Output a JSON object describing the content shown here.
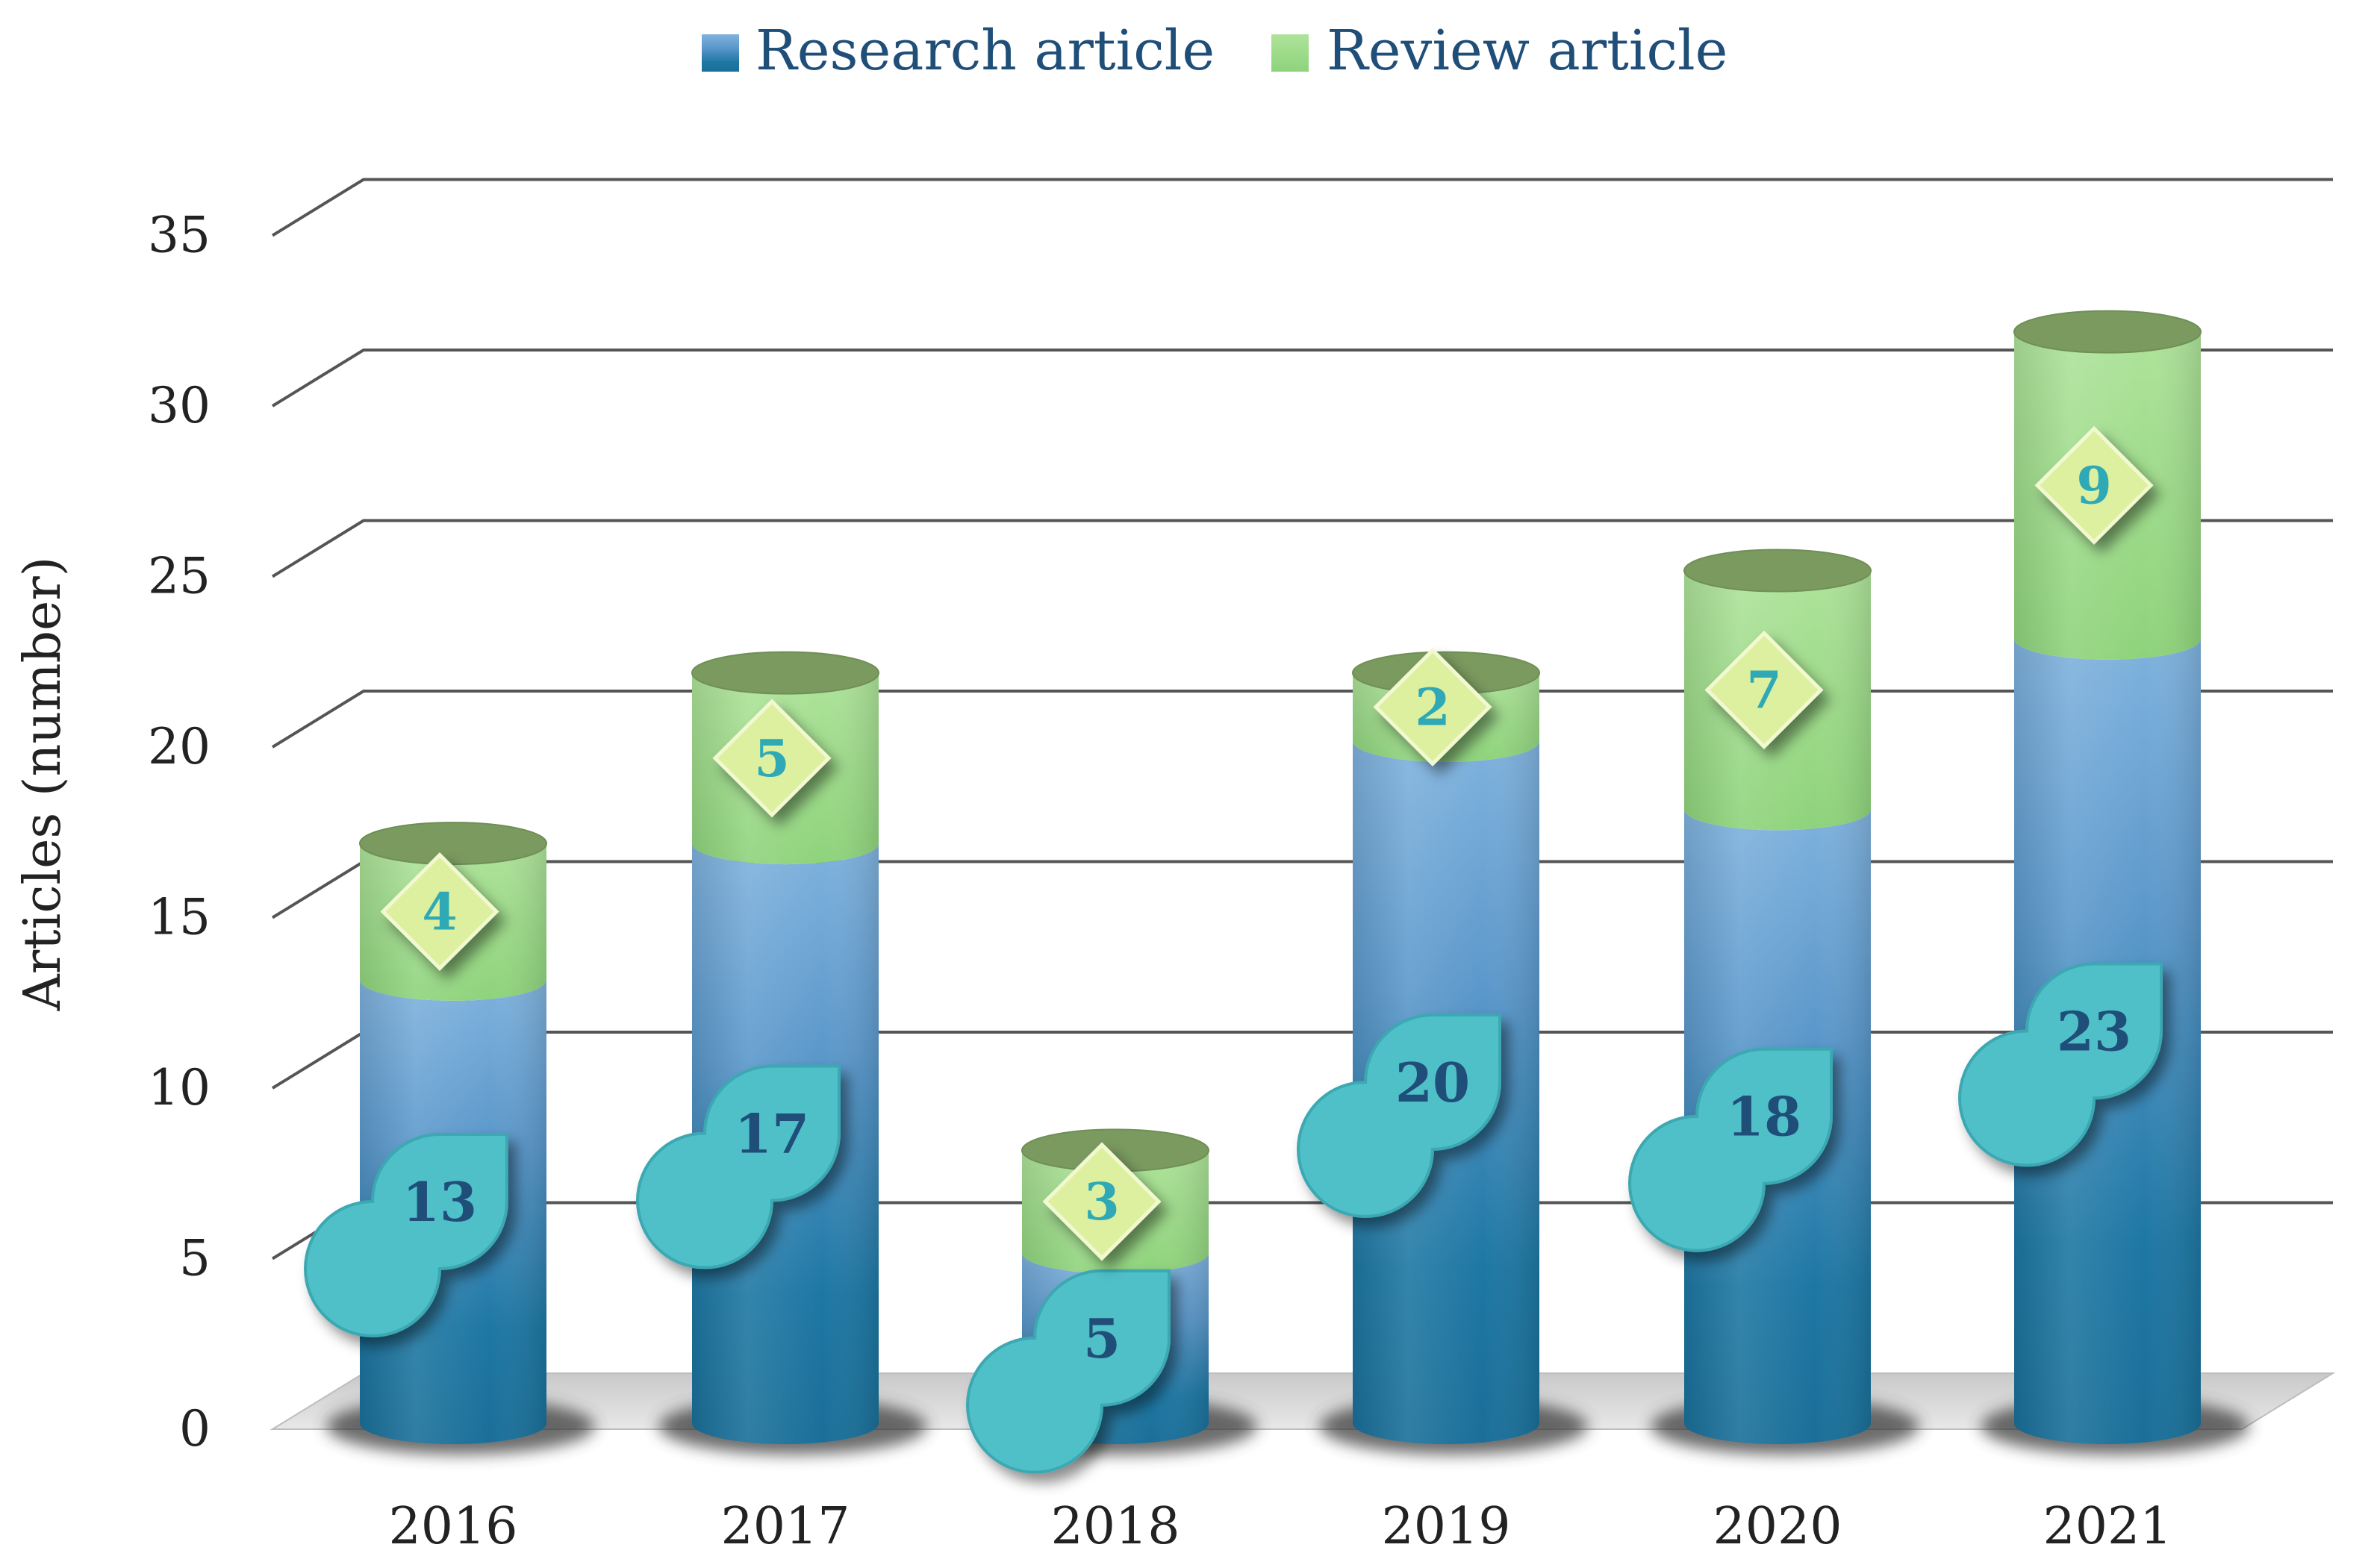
{
  "chart_data": {
    "type": "bar",
    "stacked": true,
    "style": "3d-cylinder",
    "title": "",
    "xlabel": "",
    "ylabel": "Articles (number)",
    "ylim": [
      0,
      35
    ],
    "yticks": [
      0,
      5,
      10,
      15,
      20,
      25,
      30,
      35
    ],
    "grid": true,
    "legend_position": "top-center",
    "categories": [
      "2016",
      "2017",
      "2018",
      "2019",
      "2020",
      "2021"
    ],
    "series": [
      {
        "name": "Research article",
        "values": [
          13,
          17,
          5,
          20,
          18,
          23
        ],
        "color": "#1f77a5"
      },
      {
        "name": "Review article",
        "values": [
          4,
          5,
          3,
          2,
          7,
          9
        ],
        "color": "#9ddc88"
      }
    ]
  }
}
